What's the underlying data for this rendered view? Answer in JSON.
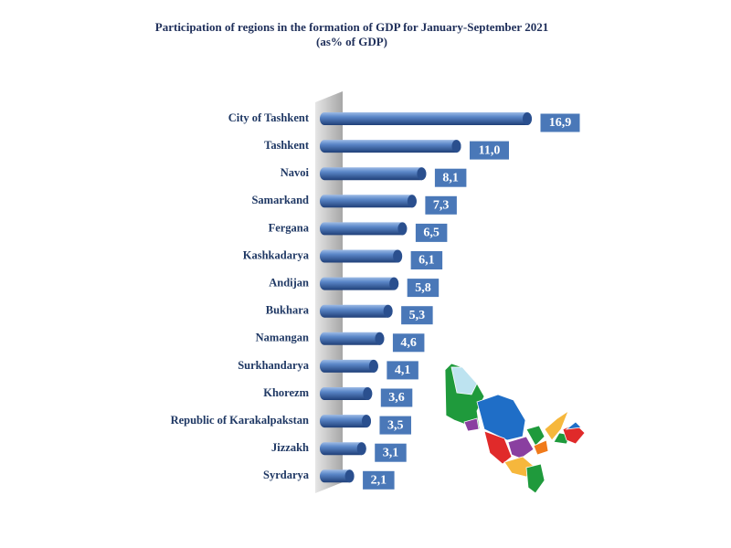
{
  "chart_data": {
    "type": "bar",
    "orientation": "horizontal",
    "title": "Participation of regions in the formation of GDP for January-September 2021",
    "subtitle": "(as% of GDP)",
    "categories": [
      "City of Tashkent",
      "Tashkent",
      "Navoi",
      "Samarkand",
      "Fergana",
      "Kashkadarya",
      "Andijan",
      "Bukhara",
      "Namangan",
      "Surkhandarya",
      "Khorezm",
      "Republic of Karakalpakstan",
      "Jizzakh",
      "Syrdarya"
    ],
    "values": [
      16.9,
      11.0,
      8.1,
      7.3,
      6.5,
      6.1,
      5.8,
      5.3,
      4.6,
      4.1,
      3.6,
      3.5,
      3.1,
      2.1
    ],
    "value_labels": [
      "16,9",
      "11,0",
      "8,1",
      "7,3",
      "6,5",
      "6,1",
      "5,8",
      "5,3",
      "4,6",
      "4,1",
      "3,6",
      "3,5",
      "3,1",
      "2,1"
    ],
    "color": "#4a78b8"
  }
}
